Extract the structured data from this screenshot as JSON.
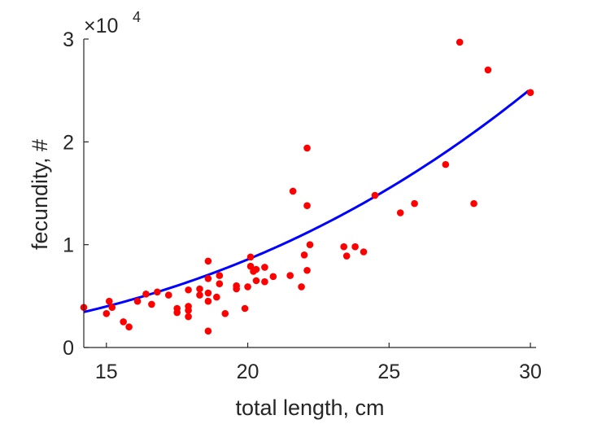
{
  "chart_data": {
    "type": "scatter",
    "xlabel": "total length, cm",
    "ylabel": "fecundity, #",
    "y_multiplier_label": "×10",
    "y_multiplier_exponent": "4",
    "xlim": [
      14.2,
      30.2
    ],
    "ylim": [
      0,
      30000
    ],
    "x_ticks": [
      15,
      20,
      25,
      30
    ],
    "x_tick_labels": [
      "15",
      "20",
      "25",
      "30"
    ],
    "y_ticks": [
      0,
      10000,
      20000,
      30000
    ],
    "y_tick_labels": [
      "0",
      "1",
      "2",
      "3"
    ],
    "grid": false,
    "legend": "none",
    "colors": {
      "points": "#ff0000",
      "fit": "#0000ff",
      "axis": "#262626"
    },
    "series": [
      {
        "type": "scatter",
        "points": [
          [
            14.2,
            3900
          ],
          [
            15.0,
            3300
          ],
          [
            15.1,
            4500
          ],
          [
            15.2,
            3900
          ],
          [
            15.6,
            2500
          ],
          [
            15.8,
            2000
          ],
          [
            16.1,
            4500
          ],
          [
            16.4,
            5200
          ],
          [
            16.6,
            4200
          ],
          [
            16.8,
            5400
          ],
          [
            17.2,
            5100
          ],
          [
            17.5,
            3800
          ],
          [
            17.5,
            3400
          ],
          [
            17.9,
            5600
          ],
          [
            17.9,
            4000
          ],
          [
            17.9,
            3600
          ],
          [
            17.9,
            3000
          ],
          [
            18.3,
            5100
          ],
          [
            18.3,
            5700
          ],
          [
            18.6,
            8400
          ],
          [
            18.6,
            6700
          ],
          [
            18.6,
            5300
          ],
          [
            18.6,
            4500
          ],
          [
            18.6,
            1600
          ],
          [
            18.9,
            4900
          ],
          [
            19.0,
            7000
          ],
          [
            19.0,
            6200
          ],
          [
            19.2,
            3300
          ],
          [
            19.6,
            6000
          ],
          [
            19.6,
            5700
          ],
          [
            19.9,
            3800
          ],
          [
            20.0,
            5900
          ],
          [
            20.1,
            8800
          ],
          [
            20.1,
            7900
          ],
          [
            20.2,
            7400
          ],
          [
            20.3,
            7600
          ],
          [
            20.3,
            6500
          ],
          [
            20.6,
            6400
          ],
          [
            20.6,
            7800
          ],
          [
            20.9,
            6900
          ],
          [
            21.5,
            7000
          ],
          [
            21.6,
            15200
          ],
          [
            21.9,
            5900
          ],
          [
            22.0,
            9000
          ],
          [
            22.1,
            7500
          ],
          [
            22.1,
            13800
          ],
          [
            22.1,
            19400
          ],
          [
            22.2,
            10000
          ],
          [
            23.4,
            9800
          ],
          [
            23.5,
            8900
          ],
          [
            23.8,
            9800
          ],
          [
            24.1,
            9300
          ],
          [
            24.5,
            14800
          ],
          [
            25.4,
            13100
          ],
          [
            25.9,
            14000
          ],
          [
            27.0,
            17800
          ],
          [
            27.5,
            29700
          ],
          [
            28.0,
            14000
          ],
          [
            28.5,
            27000
          ],
          [
            30.0,
            24800
          ]
        ]
      },
      {
        "type": "line",
        "fit": {
          "a": 3.02,
          "b": 2.6539
        }
      }
    ]
  }
}
